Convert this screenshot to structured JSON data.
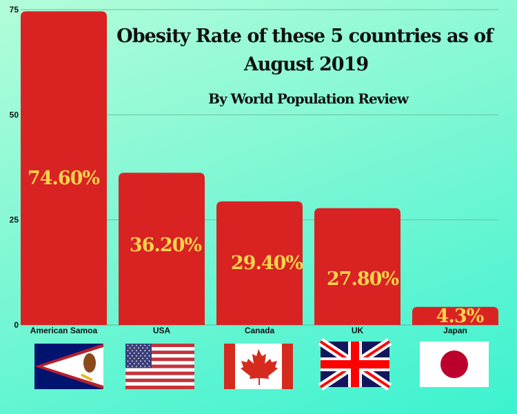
{
  "chart_data": {
    "type": "bar",
    "title_line1": "Obesity Rate of these 5 countries as of",
    "title_line2": "August 2019",
    "subtitle": "By World Population Review",
    "categories": [
      "American Samoa",
      "USA",
      "Canada",
      "UK",
      "Japan"
    ],
    "values": [
      74.6,
      36.2,
      29.4,
      27.8,
      4.3
    ],
    "data_labels": [
      "74.60%",
      "36.20%",
      "29.40%",
      "27.80%",
      "4.3%"
    ],
    "yticks": [
      "0",
      "25",
      "50",
      "75"
    ],
    "ylim": [
      0,
      75
    ],
    "xlabel": "",
    "ylabel": "",
    "grid": true,
    "colors": {
      "bar": "#d92323",
      "label": "#f7d44c",
      "grid": "#6fbfa0"
    },
    "flags": [
      "american-samoa-flag",
      "usa-flag",
      "canada-flag",
      "uk-flag",
      "japan-flag"
    ]
  }
}
